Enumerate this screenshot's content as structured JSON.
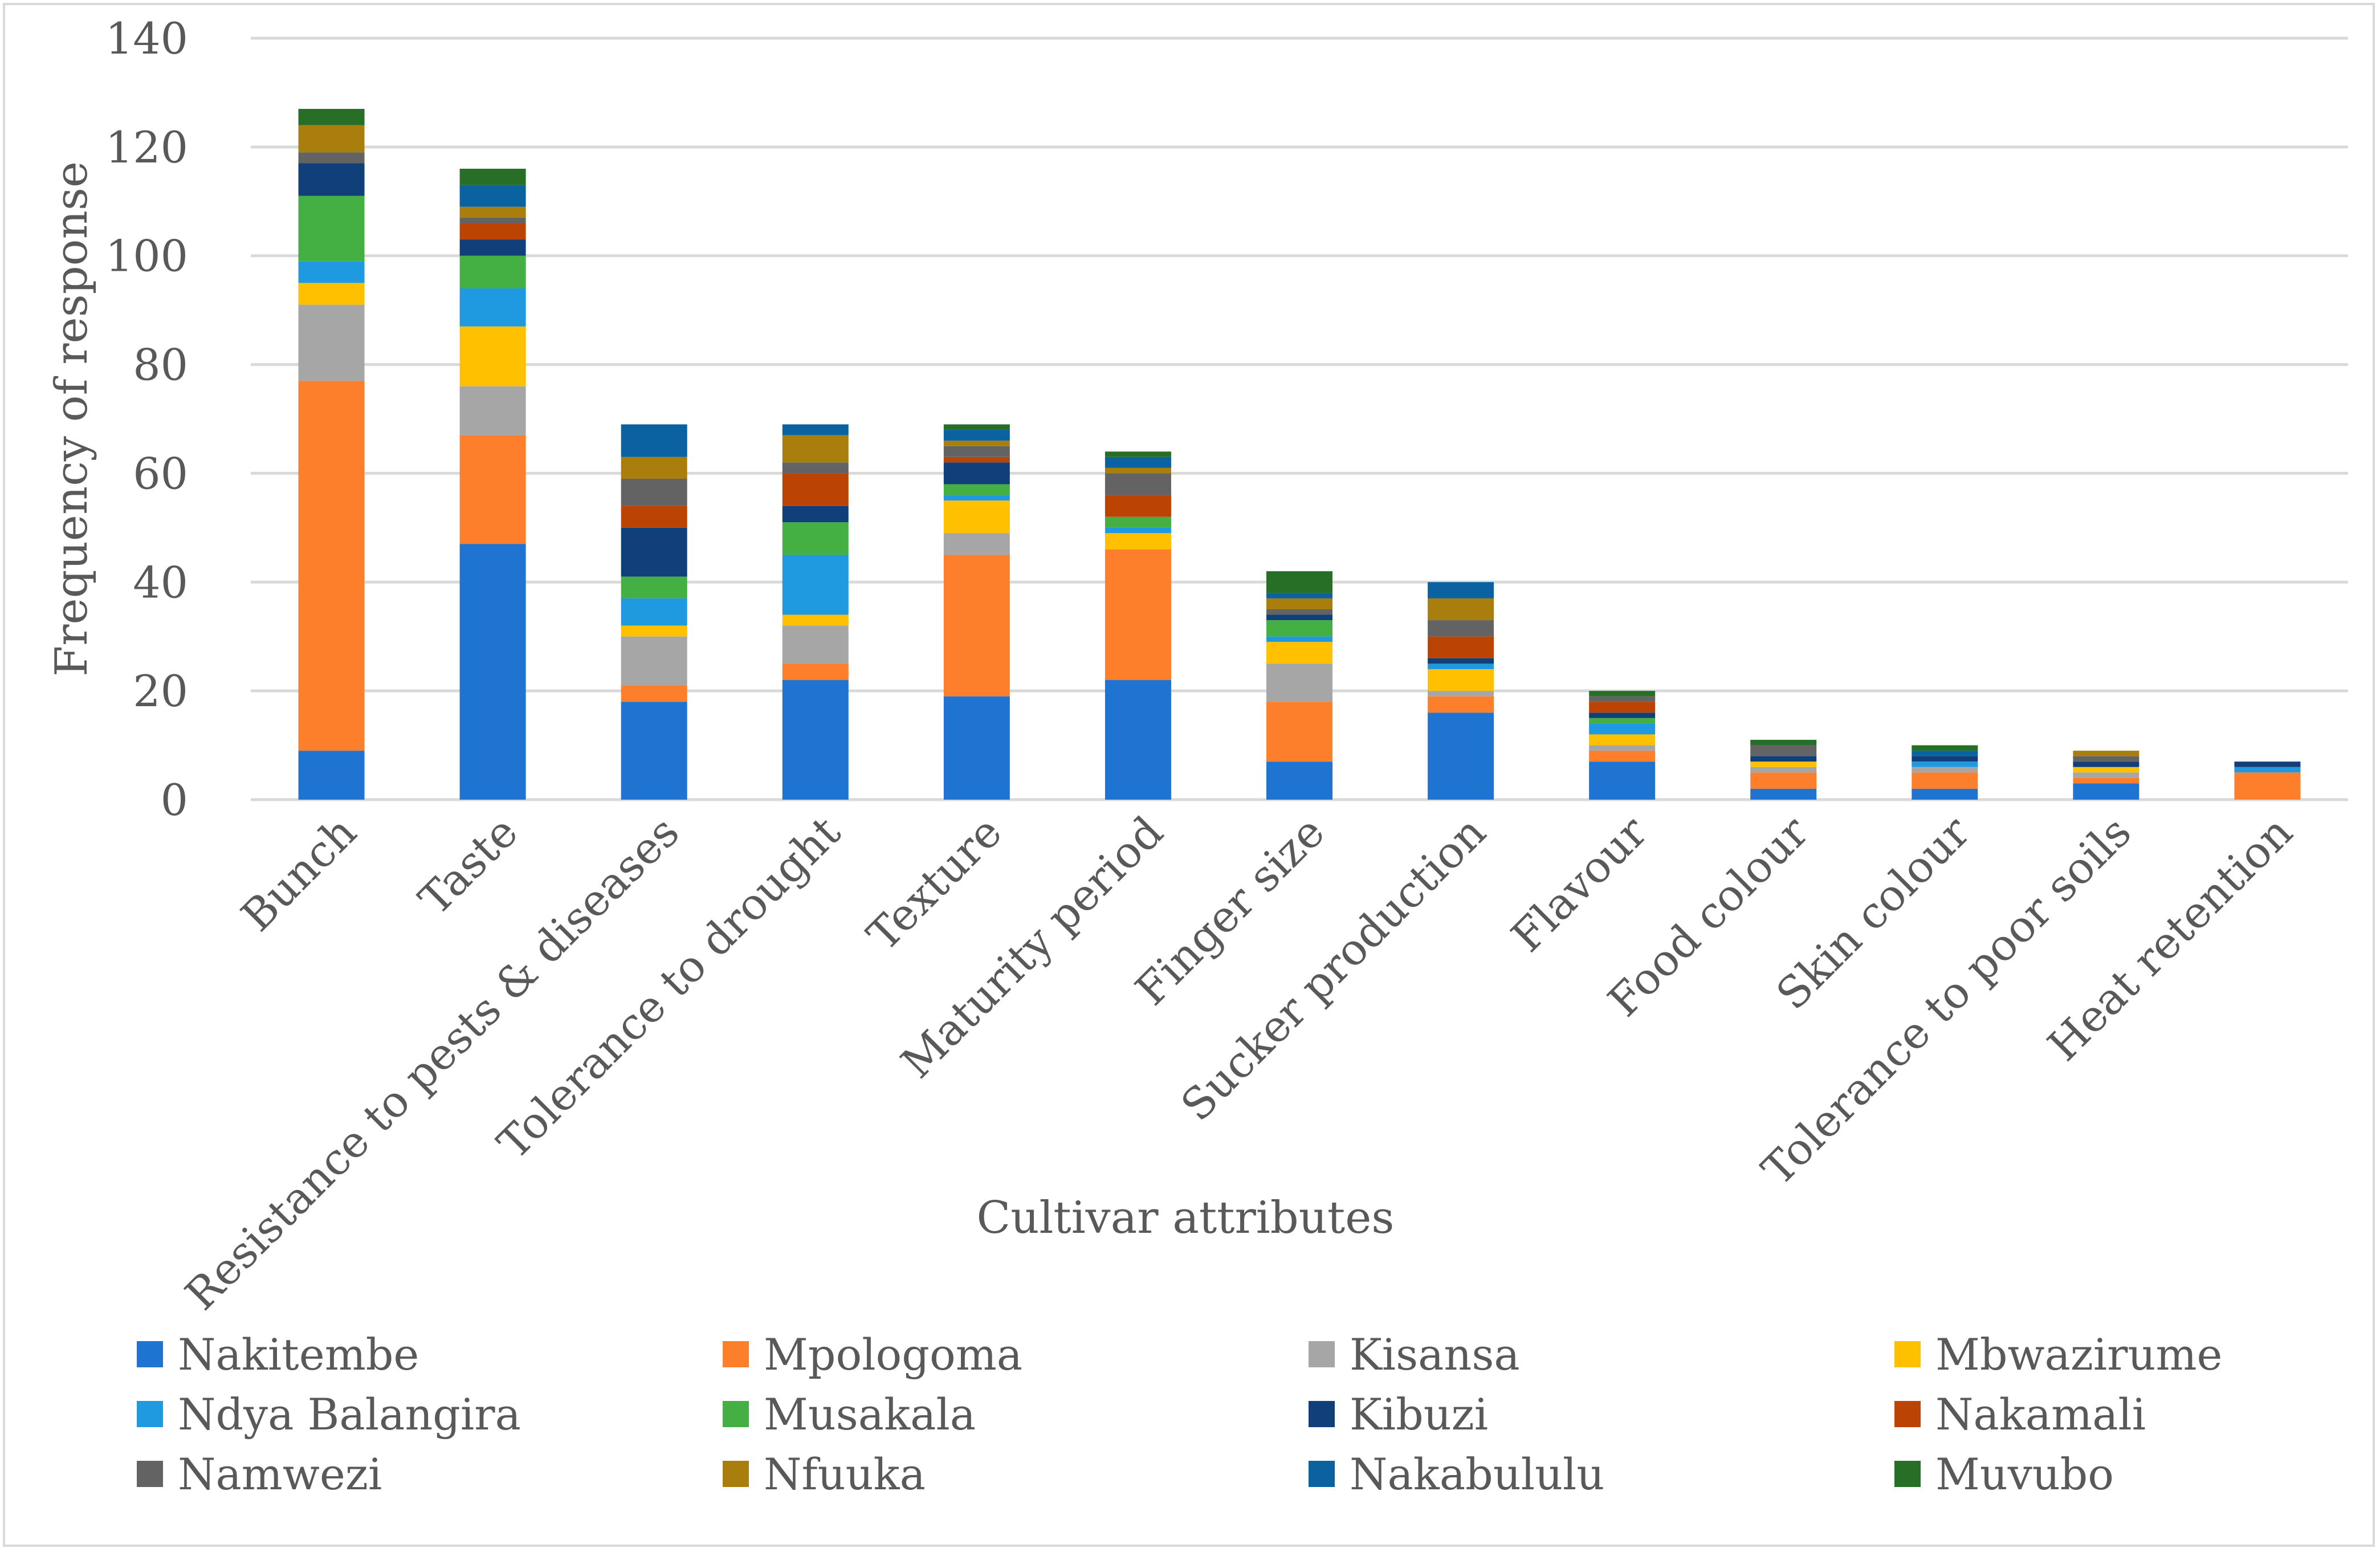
{
  "chart_data": {
    "type": "bar",
    "stacked": true,
    "title": "",
    "xlabel": "Cultivar attributes",
    "ylabel": "Frequency of response",
    "ylim": [
      0,
      140
    ],
    "yticks": [
      0,
      20,
      40,
      60,
      80,
      100,
      120,
      140
    ],
    "grid": true,
    "legend_position": "bottom",
    "categories": [
      "Bunch",
      "Taste",
      "Resistance to pests & diseases",
      "Tolerance to drought",
      "Texture",
      "Maturity period",
      "Finger size",
      "Sucker production",
      "Flavour",
      "Food colour",
      "Skin colour",
      "Tolerance to poor soils",
      "Heat retention"
    ],
    "series": [
      {
        "name": "Nakitembe",
        "color": "#1f74d1",
        "values": [
          9,
          47,
          18,
          22,
          19,
          22,
          7,
          16,
          7,
          2,
          2,
          3,
          0
        ]
      },
      {
        "name": "Mpologoma",
        "color": "#fd7f2c",
        "values": [
          68,
          20,
          3,
          3,
          26,
          24,
          11,
          3,
          2,
          3,
          3,
          1,
          5
        ]
      },
      {
        "name": "Kisansa",
        "color": "#a6a6a6",
        "values": [
          14,
          9,
          9,
          7,
          4,
          0,
          7,
          1,
          1,
          1,
          1,
          1,
          0
        ]
      },
      {
        "name": "Mbwazirume",
        "color": "#ffc000",
        "values": [
          4,
          11,
          2,
          2,
          6,
          3,
          4,
          4,
          2,
          1,
          0,
          1,
          0
        ]
      },
      {
        "name": "Ndya Balangira",
        "color": "#1f9ae0",
        "values": [
          4,
          7,
          5,
          11,
          1,
          1,
          1,
          1,
          2,
          0,
          1,
          0,
          1
        ]
      },
      {
        "name": "Musakala",
        "color": "#44b043",
        "values": [
          12,
          6,
          4,
          6,
          2,
          2,
          3,
          0,
          1,
          0,
          0,
          0,
          0
        ]
      },
      {
        "name": "Kibuzi",
        "color": "#113f7a",
        "values": [
          6,
          3,
          9,
          3,
          4,
          0,
          1,
          1,
          1,
          1,
          1,
          1,
          1
        ]
      },
      {
        "name": "Nakamali",
        "color": "#bb4405",
        "values": [
          0,
          3,
          4,
          6,
          1,
          4,
          0,
          4,
          2,
          0,
          0,
          0,
          0
        ]
      },
      {
        "name": "Namwezi",
        "color": "#636363",
        "values": [
          2,
          1,
          5,
          2,
          2,
          4,
          1,
          3,
          1,
          2,
          0,
          1,
          0
        ]
      },
      {
        "name": "Nfuuka",
        "color": "#a97e0d",
        "values": [
          5,
          2,
          4,
          5,
          1,
          1,
          2,
          4,
          0,
          0,
          0,
          1,
          0
        ]
      },
      {
        "name": "Nakabululu",
        "color": "#0a62a0",
        "values": [
          0,
          4,
          6,
          2,
          2,
          2,
          1,
          3,
          0,
          0,
          1,
          0,
          0
        ]
      },
      {
        "name": "Muvubo",
        "color": "#276f26",
        "values": [
          3,
          3,
          0,
          0,
          1,
          1,
          4,
          0,
          1,
          1,
          1,
          0,
          0
        ]
      }
    ]
  }
}
